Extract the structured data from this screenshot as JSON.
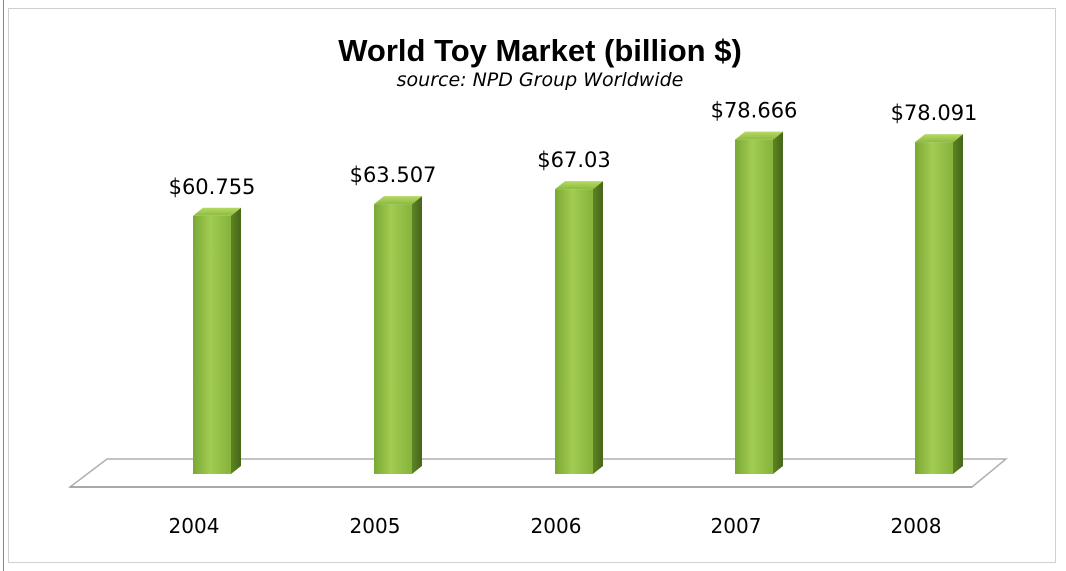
{
  "chart_data": {
    "type": "bar",
    "title": "World Toy Market (billion $)",
    "subtitle": "source: NPD Group Worldwide",
    "categories": [
      "2004",
      "2005",
      "2006",
      "2007",
      "2008"
    ],
    "values": [
      60.755,
      63.507,
      67.03,
      78.666,
      78.091
    ],
    "data_labels": [
      "$60.755",
      "$63.507",
      "$67.03",
      "$78.666",
      "$78.091"
    ],
    "xlabel": "",
    "ylabel": "",
    "ylim": [
      0,
      100
    ],
    "grid": false,
    "legend": "none",
    "style": "3d-column",
    "colors": {
      "bar_front": "#8dbb3e",
      "bar_side": "#5a7f22",
      "bar_top": "#a9d15a",
      "floor_stroke": "#b0b0b0"
    }
  }
}
